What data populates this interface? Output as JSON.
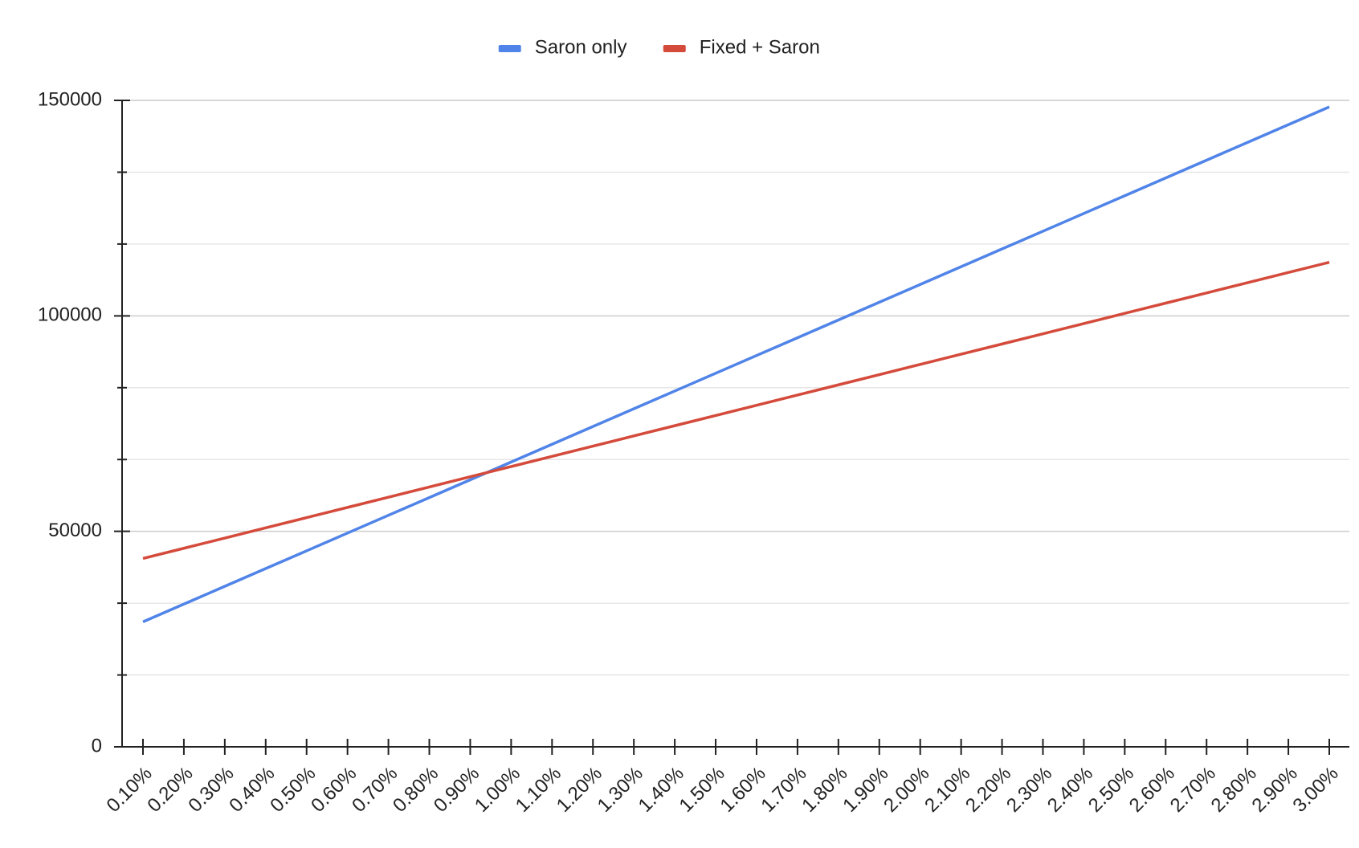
{
  "chart_data": {
    "type": "line",
    "categories": [
      "0.10%",
      "0.20%",
      "0.30%",
      "0.40%",
      "0.50%",
      "0.60%",
      "0.70%",
      "0.80%",
      "0.90%",
      "1.00%",
      "1.10%",
      "1.20%",
      "1.30%",
      "1.40%",
      "1.50%",
      "1.60%",
      "1.70%",
      "1.80%",
      "1.90%",
      "2.00%",
      "2.10%",
      "2.20%",
      "2.30%",
      "2.40%",
      "2.50%",
      "2.60%",
      "2.70%",
      "2.80%",
      "2.90%",
      "3.00%"
    ],
    "series": [
      {
        "name": "Saron only",
        "color": "#5084e8",
        "values": [
          29000,
          33120,
          37240,
          41360,
          45480,
          49600,
          53720,
          57840,
          61960,
          66080,
          70200,
          74320,
          78440,
          82560,
          86680,
          90800,
          94920,
          99040,
          103160,
          107280,
          111400,
          115520,
          119640,
          123760,
          127880,
          132000,
          136120,
          140240,
          144360,
          148480
        ]
      },
      {
        "name": "Fixed + Saron",
        "color": "#d44b3c",
        "values": [
          43700,
          46070,
          48440,
          50810,
          53180,
          55550,
          57920,
          60290,
          62660,
          65030,
          67400,
          69770,
          72140,
          74510,
          76880,
          79250,
          81620,
          83990,
          86360,
          88730,
          91100,
          93470,
          95840,
          98210,
          100580,
          102950,
          105320,
          107690,
          110060,
          112430
        ]
      }
    ],
    "ylim": [
      0,
      150000
    ],
    "yticks": [
      0,
      50000,
      100000,
      150000
    ],
    "minor_yticks": [
      16667,
      33333,
      66667,
      83333,
      116667,
      133333
    ],
    "grid": true,
    "legend": "top"
  }
}
